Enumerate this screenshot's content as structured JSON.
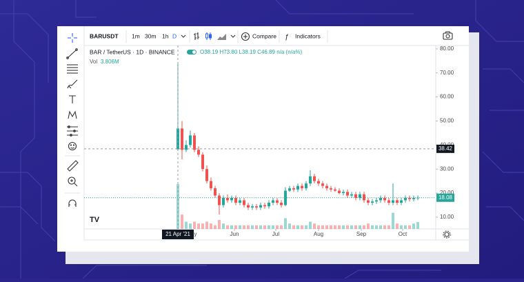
{
  "toolbar": {
    "symbol": "BARUSDT",
    "intervals": [
      "1m",
      "30m",
      "1h",
      "D"
    ],
    "compare": "Compare",
    "indicators": "Indicators"
  },
  "chart_data": {
    "type": "candlestick",
    "legend": {
      "title": "BAR / TetherUS · 1D · BINANCE",
      "ohlc": "O38.19 H73.80 L38.19 C46.89 n/a (n/a%)",
      "volume_label": "Vol",
      "volume_value": "3.806M"
    },
    "colors": {
      "up": "#26a69a",
      "down": "#ef5350"
    },
    "open": [
      38.19,
      46.89,
      38,
      40,
      44,
      38,
      36,
      30,
      25,
      22,
      19,
      15,
      18,
      17,
      18,
      16,
      17,
      15,
      14,
      14.5,
      14,
      15,
      14.5,
      16,
      17,
      16,
      15,
      21,
      22,
      21.5,
      23,
      22,
      24,
      27,
      25,
      24,
      23,
      22,
      21.5,
      21,
      20,
      20.5,
      19,
      19.5,
      18,
      19.5,
      17,
      16,
      16.5,
      17,
      18,
      17,
      16,
      17,
      16,
      17,
      18,
      17.5,
      18
    ],
    "high": [
      73.8,
      50,
      42,
      46,
      45,
      39.5,
      37,
      31.5,
      26.5,
      23,
      20,
      19,
      19.5,
      19,
      19,
      18,
      18,
      16,
      15.5,
      15.5,
      16,
      16,
      17,
      18,
      18,
      17,
      22.5,
      23,
      23,
      24,
      24,
      25,
      29.5,
      28,
      26,
      25,
      24,
      23,
      22.5,
      22,
      21.5,
      21.5,
      20.5,
      20.5,
      20.5,
      20.5,
      18,
      17.5,
      18,
      19,
      19,
      18,
      24,
      18,
      18,
      19,
      19,
      19,
      19
    ],
    "low": [
      38.19,
      34,
      37,
      39,
      37,
      35,
      29,
      24,
      21,
      18,
      11,
      14,
      16,
      16,
      15,
      15,
      14,
      13,
      13,
      13,
      13,
      13.5,
      13.5,
      15,
      15,
      14,
      14.5,
      20.5,
      20.5,
      20.5,
      21,
      21,
      23,
      24,
      23,
      22,
      21,
      20.5,
      20.5,
      19.5,
      19,
      18,
      18,
      17,
      17,
      16,
      15,
      15,
      15.5,
      16,
      16,
      15,
      15,
      15,
      15,
      16,
      16.5,
      16.5,
      17
    ],
    "close": [
      46.89,
      38,
      40,
      44,
      38,
      36,
      30,
      25,
      22,
      19,
      15,
      18,
      17,
      18,
      16,
      17,
      15,
      14,
      14.5,
      14,
      15,
      14.5,
      16,
      17,
      16,
      15,
      21,
      22,
      21.5,
      23,
      22,
      24,
      27,
      25,
      24,
      23,
      22,
      21.5,
      21,
      20,
      20.5,
      19,
      19.5,
      18,
      19.5,
      17,
      16,
      16.5,
      17,
      18,
      17,
      16,
      17,
      16,
      17,
      18,
      17.5,
      18,
      18.08
    ],
    "volume": [
      25,
      8,
      4,
      3,
      4,
      3,
      3,
      4,
      3,
      2,
      5,
      3,
      2,
      2,
      2,
      2,
      2,
      2,
      2,
      2,
      2,
      2,
      2,
      2,
      2,
      2,
      6,
      3,
      2,
      2,
      2,
      2,
      4,
      3,
      2,
      2,
      2,
      2,
      2,
      2,
      2,
      2,
      2,
      2,
      2,
      2,
      3,
      2,
      2,
      2,
      2,
      2,
      9,
      3,
      2,
      2,
      2,
      3,
      3.806
    ],
    "ylim": [
      5.1,
      81.4
    ],
    "yticks": [
      {
        "value": 10,
        "label": "10.00"
      },
      {
        "value": 20,
        "label": "20.00"
      },
      {
        "value": 30,
        "label": "30.00"
      },
      {
        "value": 40,
        "label": "40.00"
      },
      {
        "value": 50,
        "label": "50.00"
      },
      {
        "value": 60,
        "label": "60.00"
      },
      {
        "value": 70,
        "label": "70.00"
      },
      {
        "value": 80,
        "label": "80.00"
      }
    ],
    "xticks": [
      {
        "value": 3.333,
        "label": "May"
      },
      {
        "value": 13.667,
        "label": "Jun"
      },
      {
        "value": 23.667,
        "label": "Jul"
      },
      {
        "value": 34,
        "label": "Aug"
      },
      {
        "value": 44.333,
        "label": "Sep"
      },
      {
        "value": 54.333,
        "label": "Oct"
      }
    ],
    "crosshair": {
      "x_label": "21 Apr '21",
      "price": {
        "value": 38.42,
        "label": "38.42"
      }
    },
    "last_price": {
      "value": 18.08,
      "label": "18.08"
    }
  }
}
